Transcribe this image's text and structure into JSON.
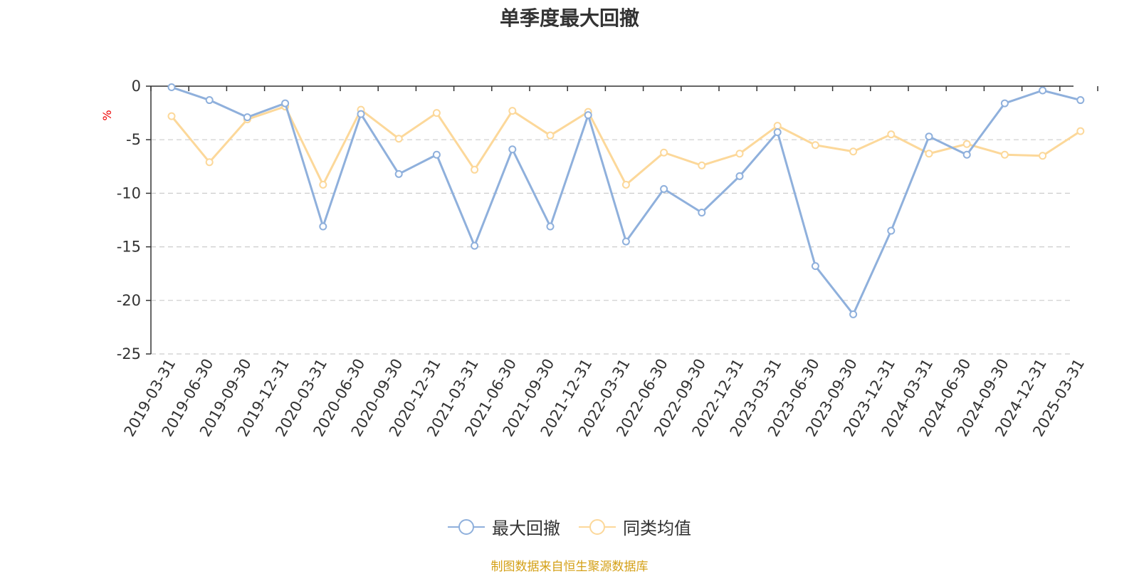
{
  "chart_data": {
    "type": "line",
    "title": "单季度最大回撤",
    "ylabel": "%",
    "xlabel": "",
    "ylim": [
      -25,
      0
    ],
    "yticks": [
      0,
      -5,
      -10,
      -15,
      -20,
      -25
    ],
    "grid": true,
    "legend_position": "bottom-center",
    "categories": [
      "2019-03-31",
      "2019-06-30",
      "2019-09-30",
      "2019-12-31",
      "2020-03-31",
      "2020-06-30",
      "2020-09-30",
      "2020-12-31",
      "2021-03-31",
      "2021-06-30",
      "2021-09-30",
      "2021-12-31",
      "2022-03-31",
      "2022-06-30",
      "2022-09-30",
      "2022-12-31",
      "2023-03-31",
      "2023-06-30",
      "2023-09-30",
      "2023-12-31",
      "2024-03-31",
      "2024-06-30",
      "2024-09-30",
      "2024-12-31",
      "2025-03-31"
    ],
    "series": [
      {
        "name": "最大回撤",
        "color": "#8fb0dc",
        "values": [
          -0.1,
          -1.3,
          -2.9,
          -1.6,
          -13.1,
          -2.6,
          -8.2,
          -6.4,
          -14.9,
          -5.9,
          -13.1,
          -2.7,
          -14.5,
          -9.6,
          -11.8,
          -8.4,
          -4.3,
          -16.8,
          -21.3,
          -13.5,
          -4.7,
          -6.4,
          -1.6,
          -0.4,
          -1.3
        ]
      },
      {
        "name": "同类均值",
        "color": "#fcd89a",
        "values": [
          -2.8,
          -7.1,
          -3.1,
          -1.9,
          -9.2,
          -2.2,
          -4.9,
          -2.5,
          -7.8,
          -2.3,
          -4.6,
          -2.4,
          -9.2,
          -6.2,
          -7.4,
          -6.3,
          -3.7,
          -5.5,
          -6.1,
          -4.5,
          -6.3,
          -5.4,
          -6.4,
          -6.5,
          -4.2
        ]
      }
    ],
    "source": "制图数据来自恒生聚源数据库"
  }
}
